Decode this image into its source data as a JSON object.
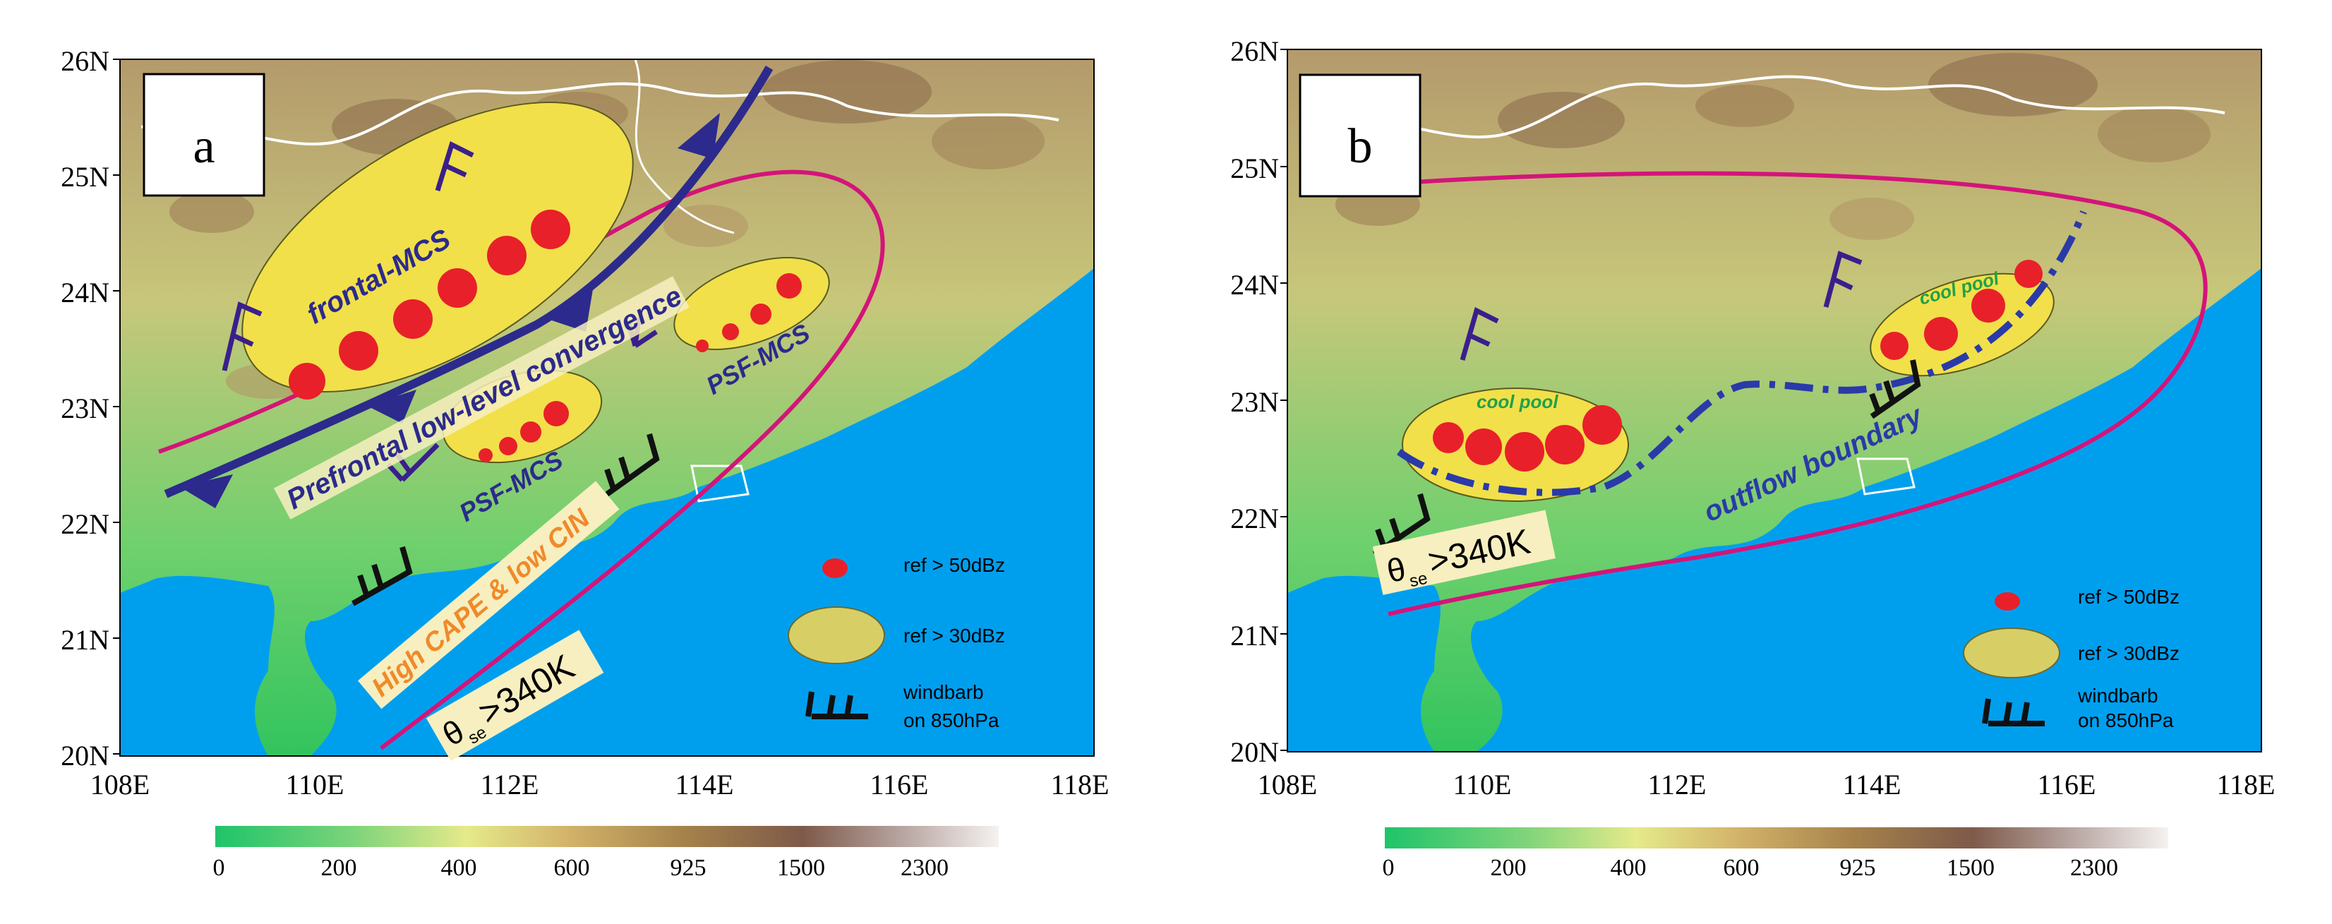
{
  "panels": [
    {
      "id": "a",
      "label": "a",
      "y_ticks": [
        "26N",
        "25N",
        "24N",
        "23N",
        "22N",
        "21N",
        "20N"
      ],
      "x_ticks": [
        "108E",
        "110E",
        "112E",
        "114E",
        "116E",
        "118E"
      ],
      "annotations": {
        "frontal_mcs": "frontal-MCS",
        "prefrontal": "Prefrontal low-level convergence",
        "psf_mcs_1": "PSF-MCS",
        "psf_mcs_2": "PSF-MCS",
        "cape": "High CAPE & low CIN",
        "theta_symbol": "θ",
        "theta_sub": "se",
        "theta_val": ">340K"
      },
      "legend": {
        "ref50": "ref > 50dBz",
        "ref30": "ref > 30dBz",
        "wind1": "windbarb",
        "wind2": "on 850hPa"
      },
      "colorbar_ticks": [
        "0",
        "200",
        "400",
        "600",
        "925",
        "1500",
        "2300"
      ]
    },
    {
      "id": "b",
      "label": "b",
      "y_ticks": [
        "26N",
        "25N",
        "24N",
        "23N",
        "22N",
        "21N",
        "20N"
      ],
      "x_ticks": [
        "108E",
        "110E",
        "112E",
        "114E",
        "116E",
        "118E"
      ],
      "annotations": {
        "cool_pool_1": "cool pool",
        "cool_pool_2": "cool pool",
        "outflow": "outflow boundary",
        "theta_symbol": "θ",
        "theta_sub": "se",
        "theta_val": ">340K"
      },
      "legend": {
        "ref50": "ref > 50dBz",
        "ref30": "ref > 30dBz",
        "wind1": "windbarb",
        "wind2": "on 850hPa"
      },
      "colorbar_ticks": [
        "0",
        "200",
        "400",
        "600",
        "925",
        "1500",
        "2300"
      ]
    }
  ],
  "colors": {
    "sea": "#009fee",
    "land_low": "#33c46a",
    "land_mid": "#d9e077",
    "land_high": "#8b6a4a",
    "front": "#2c2a8c",
    "theta_contour": "#d4147a",
    "echo30": "#f1e04a",
    "echo50": "#e8202a",
    "outflow": "#2a3aa8"
  }
}
